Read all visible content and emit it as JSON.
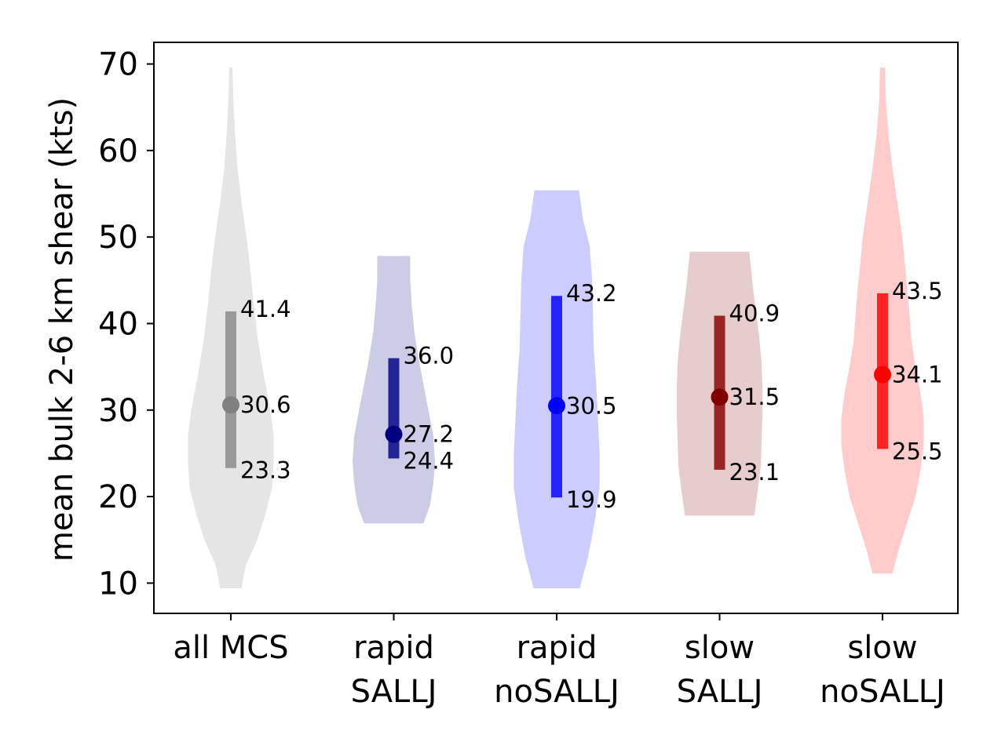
{
  "chart_data": {
    "type": "violin",
    "ylabel": "mean bulk 2-6 km shear (kts)",
    "xlabel": "",
    "ylim": [
      6.5,
      72.5
    ],
    "yticks": [
      10,
      20,
      30,
      40,
      50,
      60,
      70
    ],
    "ytick_labels": [
      "10",
      "20",
      "30",
      "40",
      "50",
      "60",
      "70"
    ],
    "grid": false,
    "groups": [
      {
        "label_lines": [
          "all MCS"
        ],
        "violin_color": "#e5e5e5",
        "bar_color": "#999999",
        "dot_color": "#808080",
        "min": 9.4,
        "max": 69.6,
        "p10": 23.3,
        "median": 30.6,
        "p90": 41.4,
        "p10_label": "23.3",
        "median_label": "30.6",
        "p90_label": "41.4",
        "density": [
          [
            9.4,
            0.13
          ],
          [
            12,
            0.18
          ],
          [
            15,
            0.32
          ],
          [
            18,
            0.42
          ],
          [
            21,
            0.5
          ],
          [
            24,
            0.52
          ],
          [
            27,
            0.52
          ],
          [
            30,
            0.48
          ],
          [
            34,
            0.4
          ],
          [
            38,
            0.33
          ],
          [
            42,
            0.28
          ],
          [
            46,
            0.24
          ],
          [
            50,
            0.19
          ],
          [
            54,
            0.13
          ],
          [
            58,
            0.08
          ],
          [
            62,
            0.05
          ],
          [
            66,
            0.03
          ],
          [
            69.6,
            0.02
          ]
        ]
      },
      {
        "label_lines": [
          "rapid",
          "SALLJ"
        ],
        "violin_color": "#ccccE6",
        "bar_color": "#242499",
        "dot_color": "#000080",
        "min": 16.9,
        "max": 47.8,
        "p10": 24.4,
        "median": 27.2,
        "p90": 36.0,
        "p10_label": "24.4",
        "median_label": "27.2",
        "p90_label": "36.0",
        "density": [
          [
            16.9,
            0.36
          ],
          [
            19,
            0.44
          ],
          [
            21.5,
            0.48
          ],
          [
            24,
            0.5
          ],
          [
            27,
            0.48
          ],
          [
            30,
            0.42
          ],
          [
            33,
            0.36
          ],
          [
            36,
            0.3
          ],
          [
            39,
            0.25
          ],
          [
            42,
            0.22
          ],
          [
            45,
            0.2
          ],
          [
            47.8,
            0.2
          ]
        ]
      },
      {
        "label_lines": [
          "rapid",
          "noSALLJ"
        ],
        "violin_color": "#ccccff",
        "bar_color": "#2323ff",
        "dot_color": "#0000ff",
        "min": 9.4,
        "max": 55.4,
        "p10": 19.9,
        "median": 30.5,
        "p90": 43.2,
        "p10_label": "19.9",
        "median_label": "30.5",
        "p90_label": "43.2",
        "density": [
          [
            9.4,
            0.28
          ],
          [
            13,
            0.38
          ],
          [
            17,
            0.46
          ],
          [
            21,
            0.52
          ],
          [
            25,
            0.52
          ],
          [
            29,
            0.5
          ],
          [
            33,
            0.48
          ],
          [
            37,
            0.45
          ],
          [
            41,
            0.44
          ],
          [
            45,
            0.43
          ],
          [
            49,
            0.4
          ],
          [
            52,
            0.32
          ],
          [
            55.4,
            0.27
          ]
        ]
      },
      {
        "label_lines": [
          "slow",
          "SALLJ"
        ],
        "violin_color": "#e6cccc",
        "bar_color": "#992424",
        "dot_color": "#800000",
        "min": 17.8,
        "max": 48.3,
        "p10": 23.1,
        "median": 31.5,
        "p90": 40.9,
        "p10_label": "23.1",
        "median_label": "31.5",
        "p90_label": "40.9",
        "density": [
          [
            17.8,
            0.42
          ],
          [
            20.5,
            0.46
          ],
          [
            23.5,
            0.5
          ],
          [
            26.5,
            0.51
          ],
          [
            29.5,
            0.52
          ],
          [
            32.5,
            0.52
          ],
          [
            35.5,
            0.51
          ],
          [
            38.5,
            0.48
          ],
          [
            41.5,
            0.44
          ],
          [
            44.5,
            0.4
          ],
          [
            46.5,
            0.38
          ],
          [
            48.3,
            0.36
          ]
        ]
      },
      {
        "label_lines": [
          "slow",
          "noSALLJ"
        ],
        "violin_color": "#ffcccc",
        "bar_color": "#ff2323",
        "dot_color": "#ff0000",
        "min": 11.1,
        "max": 69.6,
        "p10": 25.5,
        "median": 34.1,
        "p90": 43.5,
        "p10_label": "25.5",
        "median_label": "34.1",
        "p90_label": "43.5",
        "density": [
          [
            11.1,
            0.12
          ],
          [
            14,
            0.2
          ],
          [
            17,
            0.3
          ],
          [
            20,
            0.4
          ],
          [
            23,
            0.46
          ],
          [
            26,
            0.5
          ],
          [
            29,
            0.5
          ],
          [
            32,
            0.46
          ],
          [
            35,
            0.4
          ],
          [
            38,
            0.35
          ],
          [
            42,
            0.32
          ],
          [
            46,
            0.28
          ],
          [
            50,
            0.24
          ],
          [
            54,
            0.18
          ],
          [
            58,
            0.12
          ],
          [
            62,
            0.07
          ],
          [
            66,
            0.04
          ],
          [
            69.6,
            0.03
          ]
        ]
      }
    ]
  }
}
